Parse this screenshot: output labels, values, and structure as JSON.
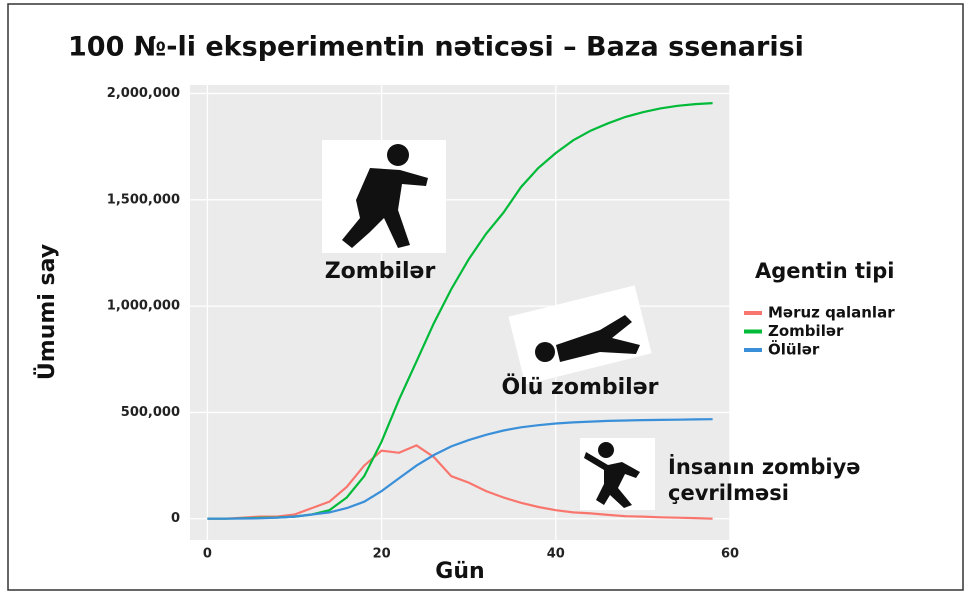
{
  "chart_data": {
    "type": "line",
    "title": "100 №-li eksperimentin nəticəsi – Baza ssenarisi",
    "x_label": "Gün",
    "y_label": "Ümumi say",
    "x": [
      0,
      2,
      4,
      6,
      8,
      10,
      12,
      14,
      16,
      18,
      20,
      22,
      24,
      26,
      28,
      30,
      32,
      34,
      36,
      38,
      40,
      42,
      44,
      46,
      48,
      50,
      52,
      54,
      56,
      58
    ],
    "series": [
      {
        "name": "Məruz qalanlar",
        "color": "#f8766d",
        "values": [
          0,
          0,
          5000,
          10000,
          10000,
          20000,
          50000,
          80000,
          150000,
          250000,
          320000,
          310000,
          345000,
          290000,
          200000,
          170000,
          130000,
          100000,
          75000,
          55000,
          40000,
          30000,
          25000,
          18000,
          12000,
          10000,
          7000,
          5000,
          3000,
          0
        ]
      },
      {
        "name": "Zombilər",
        "color": "#00ba38",
        "values": [
          0,
          0,
          2000,
          4000,
          6000,
          10000,
          20000,
          40000,
          100000,
          200000,
          363000,
          560000,
          740000,
          920000,
          1080000,
          1220000,
          1340000,
          1440000,
          1560000,
          1650000,
          1720000,
          1780000,
          1825000,
          1860000,
          1890000,
          1912000,
          1930000,
          1942000,
          1950000,
          1955000
        ]
      },
      {
        "name": "Ölülər",
        "color": "#3a8fd9",
        "values": [
          0,
          0,
          1000,
          2000,
          5000,
          10000,
          20000,
          30000,
          50000,
          80000,
          130000,
          190000,
          250000,
          300000,
          340000,
          370000,
          395000,
          415000,
          430000,
          440000,
          448000,
          453000,
          457000,
          460000,
          462000,
          464000,
          465000,
          466000,
          467000,
          468000
        ]
      }
    ],
    "xlim": [
      -2,
      60
    ],
    "xticks": [
      0,
      20,
      40,
      60
    ],
    "ylim": [
      -100000,
      2040000
    ],
    "yticks": [
      0,
      {
        "value": 500000,
        "label": "500,000"
      },
      {
        "value": 1000000,
        "label": "1,000,000"
      },
      {
        "value": 1500000,
        "label": "1,500,000"
      },
      {
        "value": 2000000,
        "label": "2,000,000"
      }
    ],
    "grid": true,
    "legend_title": "Agentin tipi",
    "legend_position": "right",
    "annotations": [
      "Zombilər",
      "Ölü zombilər",
      "İnsanın zombiyə",
      "çevrilməsi"
    ]
  }
}
